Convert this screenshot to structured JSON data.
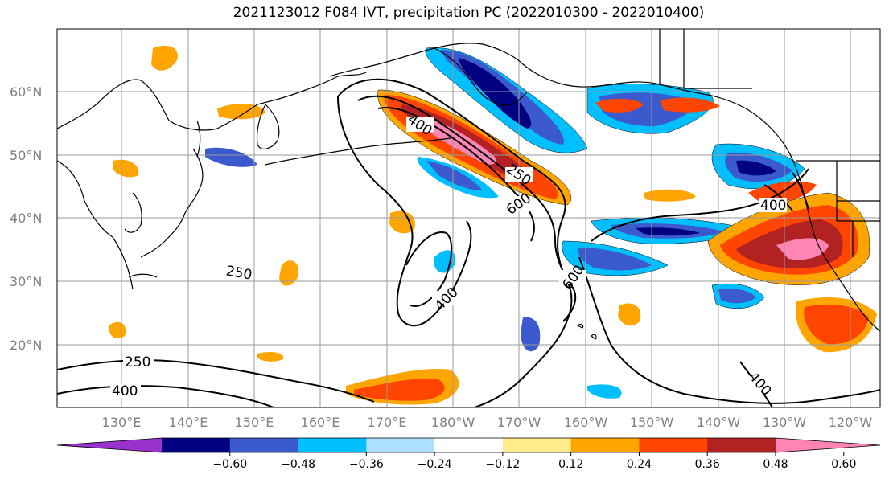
{
  "title": "2021123012 F084 IVT, precipitation PC (2022010300 - 2022010400)",
  "map": {
    "lat_labels": [
      "60°N",
      "50°N",
      "40°N",
      "30°N",
      "20°N"
    ],
    "lon_labels": [
      "130°E",
      "140°E",
      "150°E",
      "160°E",
      "170°E",
      "180°W",
      "170°W",
      "160°W",
      "150°W",
      "140°W",
      "130°W",
      "120°W"
    ],
    "ivt_contour_labels": [
      "400",
      "250",
      "600",
      "400",
      "600",
      "250",
      "400",
      "250",
      "400",
      "400"
    ]
  },
  "colorbar": {
    "ticks": [
      "−0.60",
      "−0.48",
      "−0.36",
      "−0.24",
      "−0.12",
      "0.12",
      "0.24",
      "0.36",
      "0.48",
      "0.60"
    ],
    "colors": [
      "#9932CC",
      "#000080",
      "#3A5ACD",
      "#00BFFF",
      "#ADE0FF",
      "#FFFFFF",
      "#FFEB8A",
      "#FFA500",
      "#FF4500",
      "#B22222",
      "#FF85B5"
    ]
  }
}
